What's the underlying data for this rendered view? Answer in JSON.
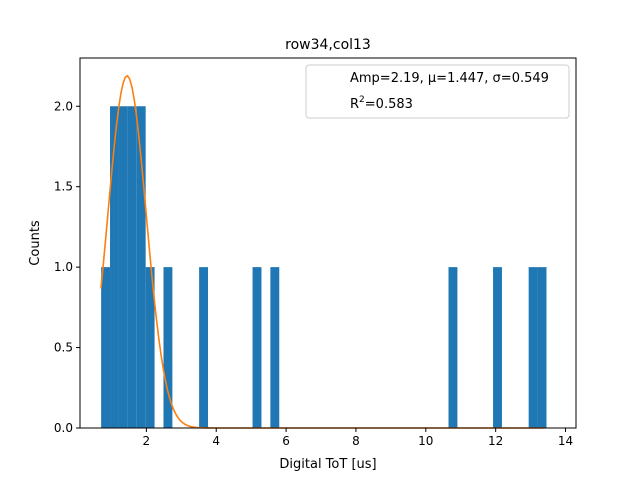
{
  "chart_data": {
    "type": "bar",
    "title": "row34,col13",
    "xlabel": "Digital ToT [us]",
    "ylabel": "Counts",
    "xlim": [
      0.1,
      14.3
    ],
    "ylim": [
      0,
      2.3
    ],
    "xticks": [
      2,
      4,
      6,
      8,
      10,
      12,
      14
    ],
    "yticks": [
      0.0,
      0.5,
      1.0,
      1.5,
      2.0
    ],
    "grid": false,
    "legend_position": "top-right",
    "legend": {
      "line1": "Amp=2.19, μ=1.447, σ=0.549",
      "line2_prefix": "R",
      "line2_sup": "2",
      "line2_suffix": "=0.583"
    },
    "bar_color": "#1f77b4",
    "fit_color": "#ff7f0e",
    "bin_width": 0.255,
    "histogram": [
      {
        "x": 0.705,
        "count": 1
      },
      {
        "x": 0.96,
        "count": 2
      },
      {
        "x": 1.215,
        "count": 2
      },
      {
        "x": 1.47,
        "count": 2
      },
      {
        "x": 1.725,
        "count": 2
      },
      {
        "x": 1.98,
        "count": 1
      },
      {
        "x": 2.49,
        "count": 1
      },
      {
        "x": 3.51,
        "count": 1
      },
      {
        "x": 5.04,
        "count": 1
      },
      {
        "x": 5.55,
        "count": 1
      },
      {
        "x": 10.65,
        "count": 1
      },
      {
        "x": 11.925,
        "count": 1
      },
      {
        "x": 12.945,
        "count": 1
      },
      {
        "x": 13.2,
        "count": 1
      }
    ],
    "fit": {
      "model": "gaussian",
      "amp": 2.19,
      "mu": 1.447,
      "sigma": 0.549,
      "x_range": [
        0.7,
        13.4
      ]
    }
  }
}
